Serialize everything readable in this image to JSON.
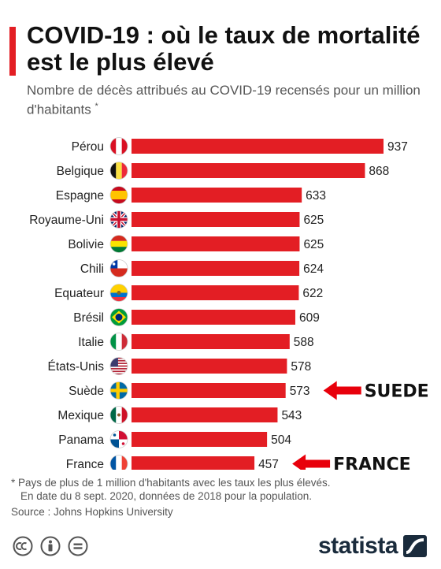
{
  "title": "COVID-19 : où le taux de mortalité est le plus élevé",
  "subtitle": "Nombre de décès attribués au COVID-19 recensés pour un million d'habitants",
  "subtitle_mark": "*",
  "footnote": {
    "line1": "* Pays de plus de 1 million d'habitants avec les taux les plus élevés.",
    "line2": "En date du 8 sept. 2020, données de 2018 pour la population.",
    "source": "Source : Johns Hopkins University"
  },
  "brand": {
    "name": "statista"
  },
  "colors": {
    "bar": "#e31e24",
    "accent": "#e31e24",
    "arrow": "#e8000b"
  },
  "annotations": [
    {
      "text": "SUEDE",
      "target": "Suède"
    },
    {
      "text": "FRANCE",
      "target": "France"
    }
  ],
  "chart_data": {
    "type": "bar",
    "orientation": "horizontal",
    "categories": [
      "Pérou",
      "Belgique",
      "Espagne",
      "Royaume-Uni",
      "Bolivie",
      "Chili",
      "Equateur",
      "Brésil",
      "Italie",
      "États-Unis",
      "Suède",
      "Mexique",
      "Panama",
      "France"
    ],
    "values": [
      937,
      868,
      633,
      625,
      625,
      624,
      622,
      609,
      588,
      578,
      573,
      543,
      504,
      457
    ],
    "flags": [
      "flag-peru",
      "flag-belgium",
      "flag-spain",
      "flag-uk",
      "flag-bolivia",
      "flag-chile",
      "flag-ecuador",
      "flag-brazil",
      "flag-italy",
      "flag-usa",
      "flag-sweden",
      "flag-mexico",
      "flag-panama",
      "flag-france"
    ],
    "xlim": [
      0,
      937
    ],
    "grid": false,
    "data_labels": true
  }
}
